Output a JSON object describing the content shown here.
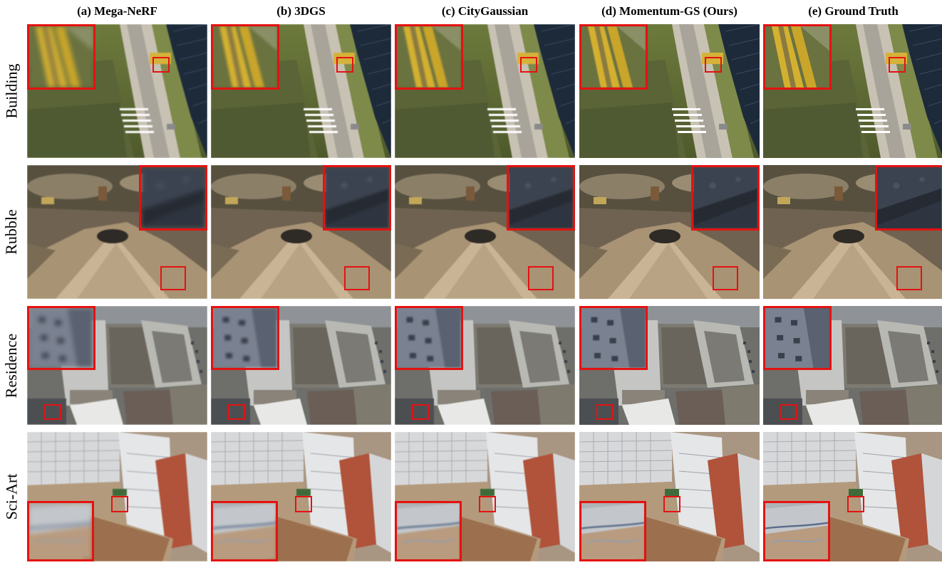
{
  "figure": {
    "columns": [
      {
        "label": "(a) Mega-NeRF",
        "method": "mega-nerf",
        "blur": 2.2
      },
      {
        "label": "(b) 3DGS",
        "method": "3dgs",
        "blur": 1.4
      },
      {
        "label": "(c) CityGaussian",
        "method": "citygaussian",
        "blur": 1.0
      },
      {
        "label": "(d) Momentum-GS (Ours)",
        "method": "momentum-gs",
        "blur": 0.5
      },
      {
        "label": "(e) Ground Truth",
        "method": "ground-truth",
        "blur": 0.0
      }
    ],
    "rows": [
      {
        "label": "Building",
        "scene": "building"
      },
      {
        "label": "Rubble",
        "scene": "rubble"
      },
      {
        "label": "Residence",
        "scene": "residence"
      },
      {
        "label": "Sci-Art",
        "scene": "sciart"
      }
    ],
    "colors": {
      "highlight": "#e41212"
    }
  }
}
